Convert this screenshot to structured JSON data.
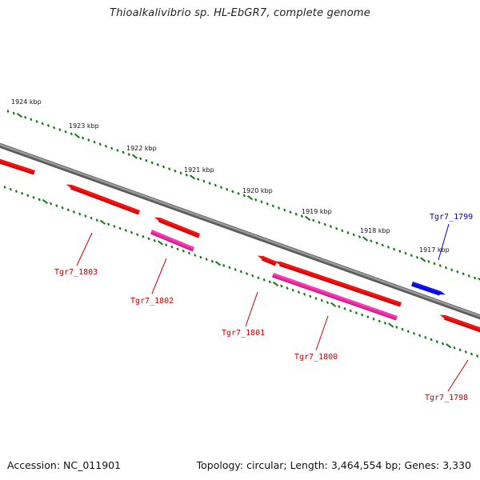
{
  "title": "Thioalkalivibrio sp. HL-EbGR7, complete genome",
  "footer": {
    "accession": "Accession: NC_011901",
    "topology": "Topology: circular; Length: 3,464,554 bp; Genes: 3,330"
  },
  "colors": {
    "backbone": "#808080",
    "tick": "#1a7a1a",
    "forward_gene": "#0000ee",
    "reverse_gene": "#ee0000",
    "reverse_rna": "#ee2299",
    "label_forward": "#0000cc",
    "label_reverse": "#cc0000"
  },
  "kbp_labels": [
    "1924 kbp",
    "1923 kbp",
    "1922 kbp",
    "1921 kbp",
    "1920 kbp",
    "1919 kbp",
    "1918 kbp",
    "1917 kbp"
  ],
  "genes": [
    {
      "id": "Tgr7_1803",
      "strand": "reverse",
      "kind": "gene"
    },
    {
      "id": "Tgr7_1802",
      "strand": "reverse",
      "kind": "rna"
    },
    {
      "id": "Tgr7_1801",
      "strand": "reverse",
      "kind": "gene"
    },
    {
      "id": "Tgr7_1800",
      "strand": "reverse",
      "kind": "rna"
    },
    {
      "id": "Tgr7_1799",
      "strand": "forward",
      "kind": "gene"
    },
    {
      "id": "Tgr7_1798",
      "strand": "reverse",
      "kind": "gene"
    }
  ]
}
